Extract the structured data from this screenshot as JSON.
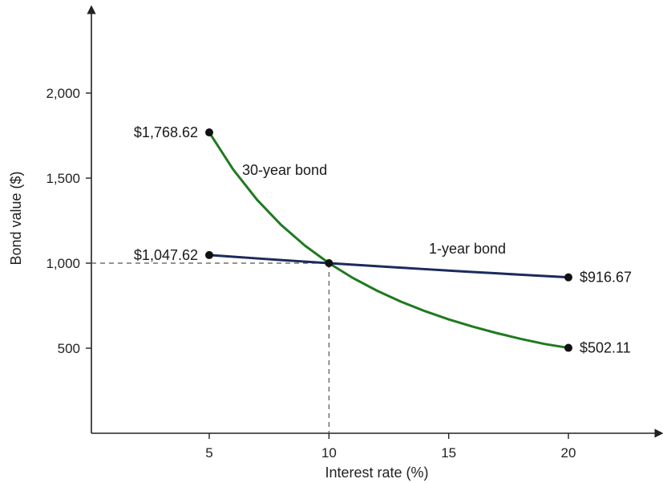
{
  "chart_data": {
    "type": "line",
    "xlabel": "Interest rate (%)",
    "ylabel": "Bond value ($)",
    "xlim": [
      0,
      24
    ],
    "ylim": [
      0,
      2400
    ],
    "x_ticks": [
      5,
      10,
      15,
      20
    ],
    "y_ticks": [
      500,
      1000,
      1500,
      2000
    ],
    "x_tick_labels": [
      "5",
      "10",
      "15",
      "20"
    ],
    "y_tick_labels": [
      "500",
      "1,000",
      "1,500",
      "2,000"
    ],
    "grid": false,
    "series": [
      {
        "name": "30-year bond",
        "color": "#1f7a1f",
        "x": [
          5,
          6,
          7,
          8,
          9,
          10,
          11,
          12,
          13,
          14,
          15,
          16,
          17,
          18,
          19,
          20
        ],
        "y": [
          1768.62,
          1550.64,
          1372.27,
          1225.16,
          1102.74,
          1000.0,
          912.89,
          838.38,
          774.16,
          718.37,
          669.68,
          626.88,
          589.0,
          555.28,
          525.12,
          502.11
        ],
        "end_labels": [
          "$1,768.62",
          "$502.11"
        ]
      },
      {
        "name": "1-year bond",
        "color": "#1c2a5c",
        "x": [
          5,
          6,
          7,
          8,
          9,
          10,
          11,
          12,
          13,
          14,
          15,
          16,
          17,
          18,
          19,
          20
        ],
        "y": [
          1047.62,
          1037.74,
          1028.04,
          1018.52,
          1009.17,
          1000.0,
          990.99,
          982.14,
          973.45,
          964.91,
          956.52,
          948.28,
          940.17,
          932.2,
          924.37,
          916.67
        ],
        "end_labels": [
          "$1,047.62",
          "$916.67"
        ]
      }
    ],
    "reference_point": {
      "x": 10,
      "y": 1000
    }
  }
}
